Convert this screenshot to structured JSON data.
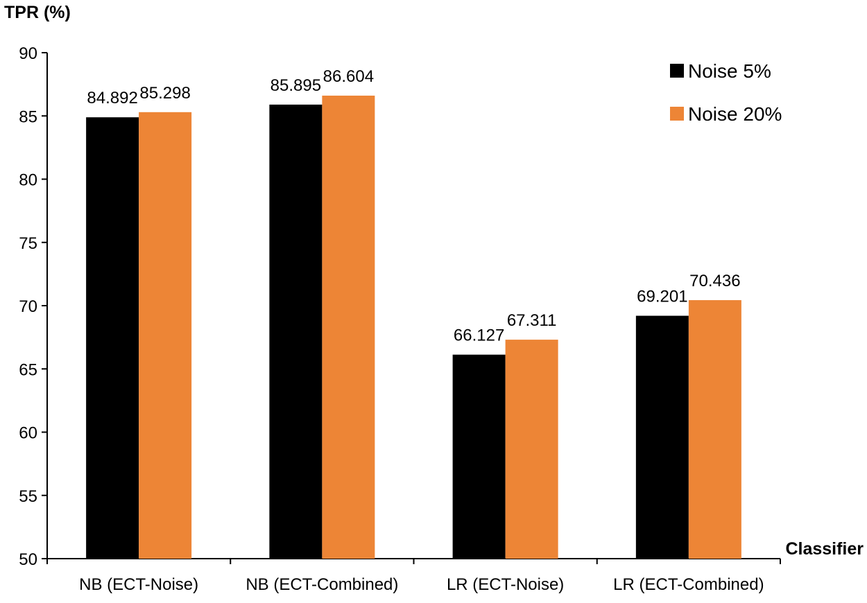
{
  "chart_data": {
    "type": "bar",
    "title": "",
    "ylabel": "TPR (%)",
    "xlabel": "Classifier",
    "ylim": [
      50,
      90
    ],
    "yticks": [
      50,
      55,
      60,
      65,
      70,
      75,
      80,
      85,
      90
    ],
    "categories": [
      "NB (ECT-Noise)",
      "NB (ECT-Combined)",
      "LR (ECT-Noise)",
      "LR (ECT-Combined)"
    ],
    "series": [
      {
        "name": "Noise 5%",
        "color": "#000000",
        "values": [
          84.892,
          85.895,
          66.127,
          69.201
        ],
        "labels": [
          "84.892",
          "85.895",
          "66.127",
          "69.201"
        ]
      },
      {
        "name": "Noise 20%",
        "color": "#ED8536",
        "values": [
          85.298,
          86.604,
          67.311,
          70.436
        ],
        "labels": [
          "85.298",
          "86.604",
          "67.311",
          "70.436"
        ]
      }
    ],
    "legend_position": "top-right",
    "grid": false
  }
}
